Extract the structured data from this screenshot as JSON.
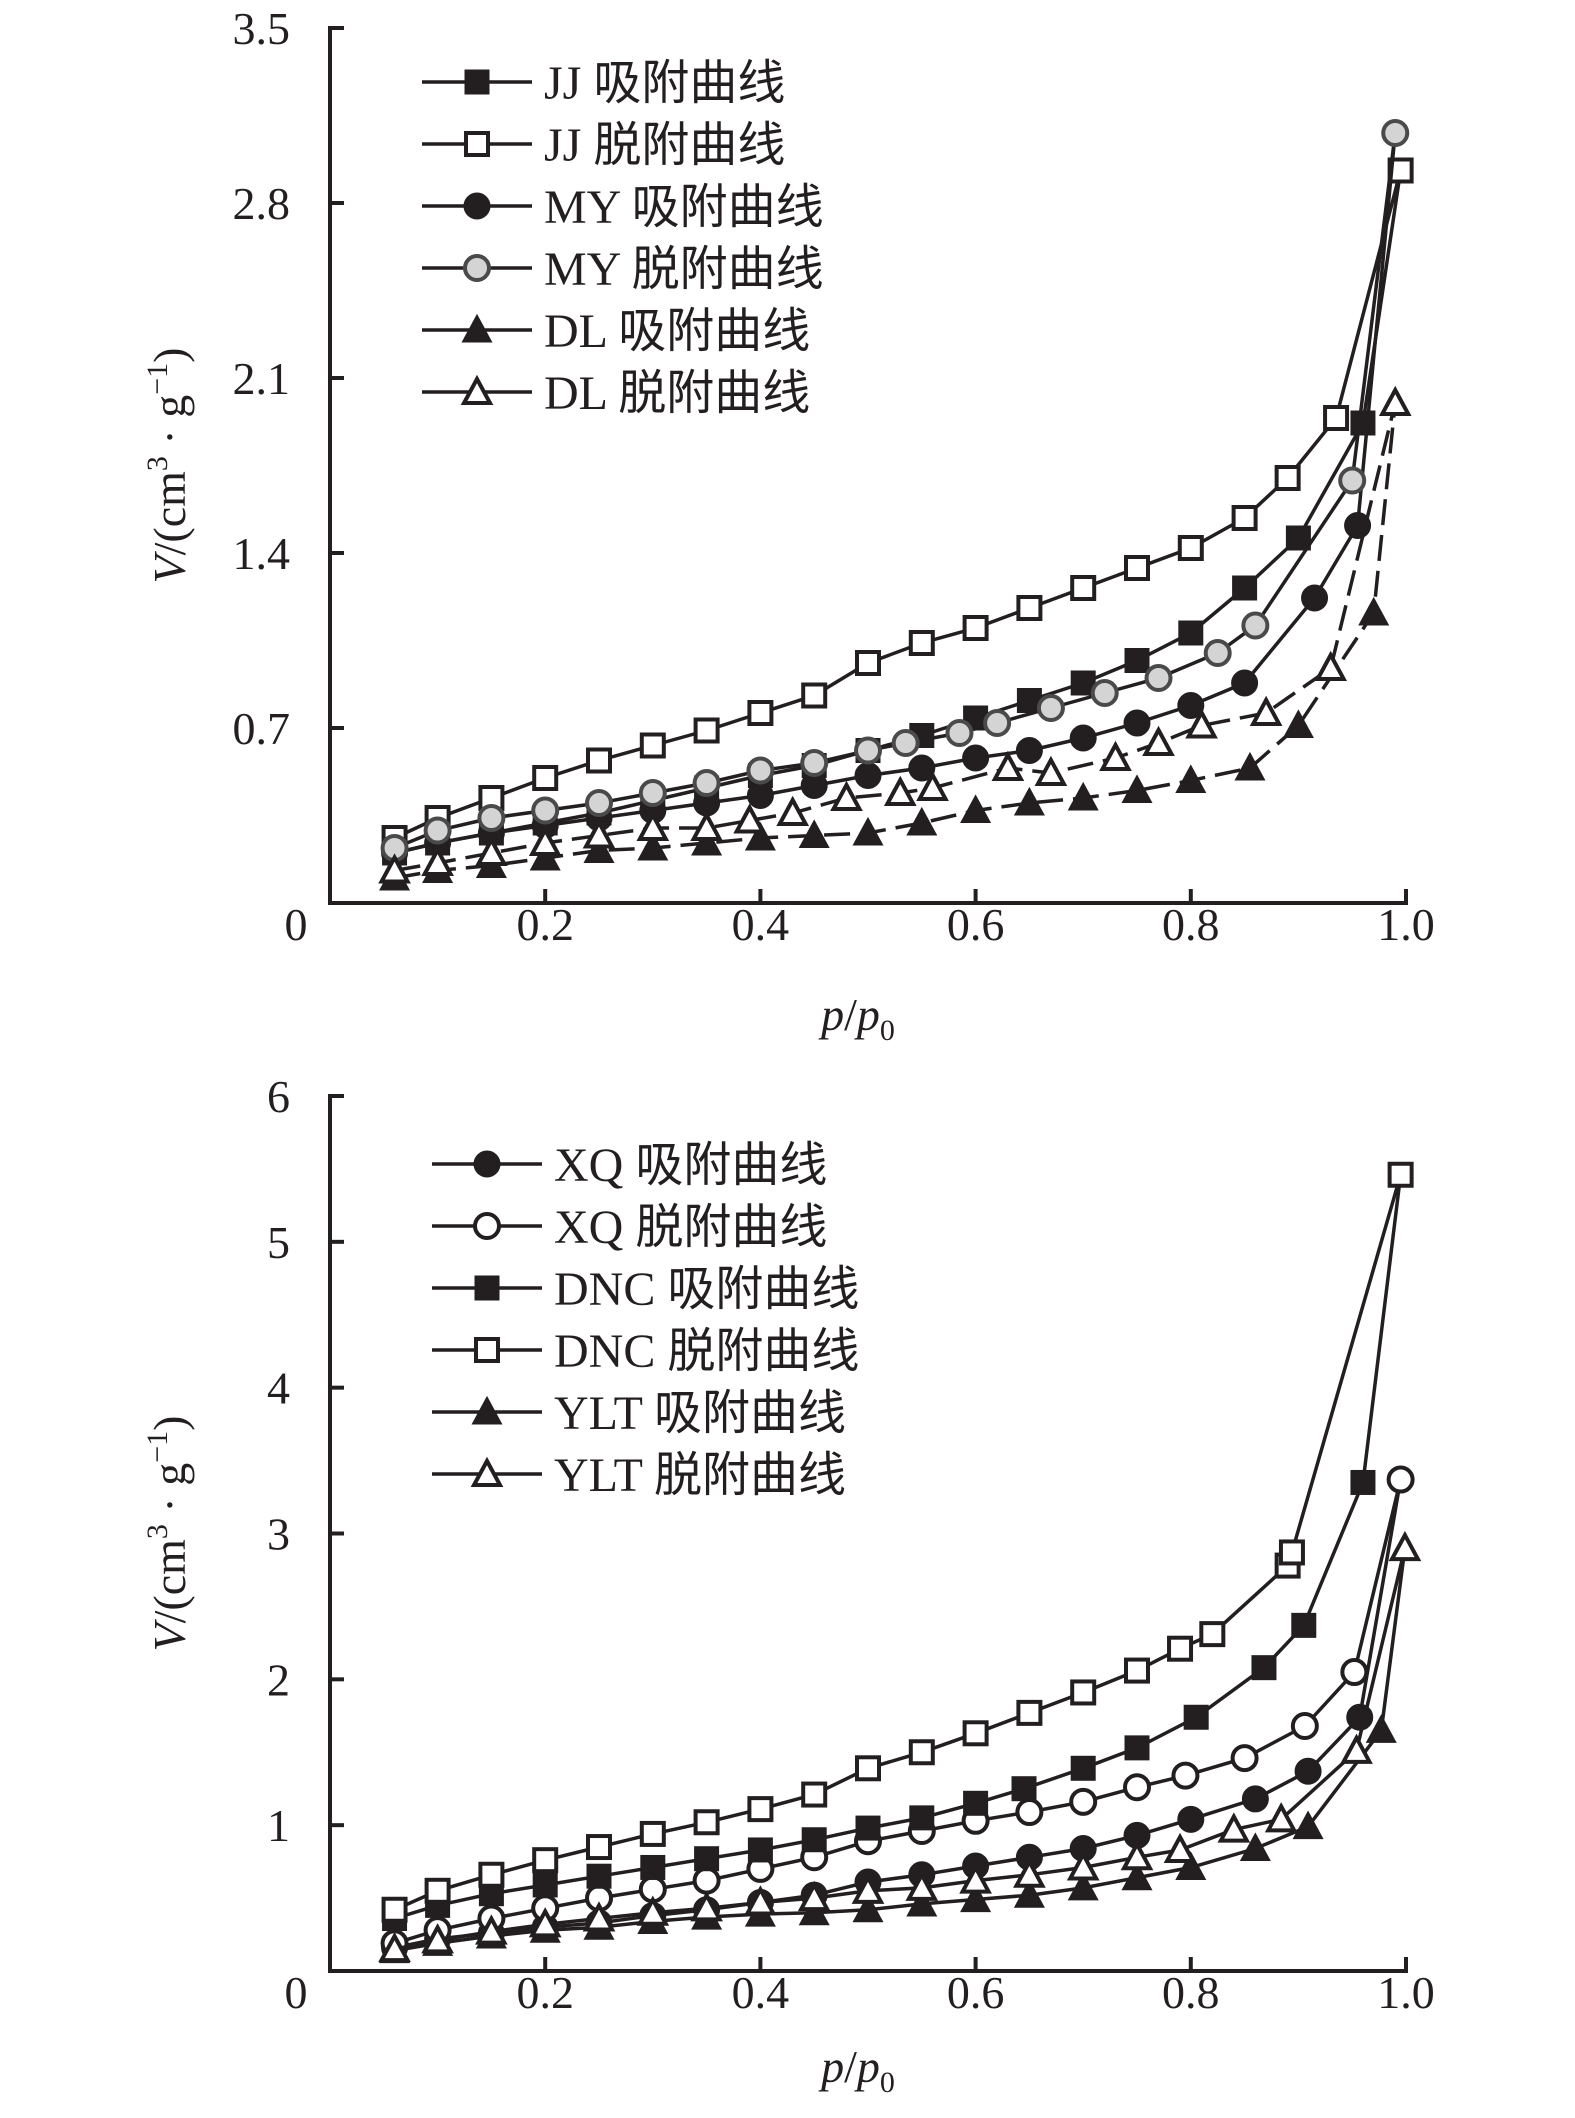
{
  "chart_data": [
    {
      "type": "line",
      "title": "",
      "xlabel": "p/p0",
      "ylabel": "V/(cm3·g-1)",
      "xlim": [
        0,
        1.0
      ],
      "ylim": [
        0,
        3.5
      ],
      "x_ticks": [
        "0",
        "0.2",
        "0.4",
        "0.6",
        "0.8",
        "1.0"
      ],
      "x_tick_values": [
        0,
        0.2,
        0.4,
        0.6,
        0.8,
        1.0
      ],
      "y_ticks": [
        "0.7",
        "1.4",
        "2.1",
        "2.8",
        "3.5"
      ],
      "y_tick_values": [
        0.7,
        1.4,
        2.1,
        2.8,
        3.5
      ],
      "grid": false,
      "legend_position": "top-left",
      "series": [
        {
          "name": "JJ 吸附曲线",
          "marker": "square-filled",
          "dashed": false,
          "x": [
            0.06,
            0.1,
            0.15,
            0.2,
            0.25,
            0.3,
            0.35,
            0.4,
            0.45,
            0.5,
            0.55,
            0.6,
            0.65,
            0.7,
            0.75,
            0.8,
            0.85,
            0.9,
            0.96,
            0.995
          ],
          "y": [
            0.2,
            0.24,
            0.28,
            0.32,
            0.36,
            0.41,
            0.46,
            0.51,
            0.55,
            0.61,
            0.67,
            0.74,
            0.81,
            0.88,
            0.97,
            1.08,
            1.26,
            1.46,
            1.92,
            2.93
          ]
        },
        {
          "name": "JJ 脱附曲线",
          "marker": "square-open",
          "dashed": false,
          "x": [
            0.06,
            0.1,
            0.15,
            0.2,
            0.25,
            0.3,
            0.35,
            0.4,
            0.45,
            0.5,
            0.55,
            0.6,
            0.65,
            0.7,
            0.75,
            0.8,
            0.85,
            0.89,
            0.935,
            0.995
          ],
          "y": [
            0.26,
            0.34,
            0.42,
            0.5,
            0.57,
            0.63,
            0.69,
            0.76,
            0.83,
            0.96,
            1.04,
            1.1,
            1.18,
            1.26,
            1.34,
            1.42,
            1.54,
            1.7,
            1.94,
            2.93
          ]
        },
        {
          "name": "MY 吸附曲线",
          "marker": "circle-filled",
          "dashed": false,
          "x": [
            0.06,
            0.1,
            0.15,
            0.2,
            0.25,
            0.3,
            0.35,
            0.4,
            0.45,
            0.5,
            0.55,
            0.6,
            0.65,
            0.7,
            0.75,
            0.8,
            0.85,
            0.915,
            0.955,
            0.99
          ],
          "y": [
            0.2,
            0.24,
            0.28,
            0.31,
            0.34,
            0.37,
            0.4,
            0.43,
            0.47,
            0.51,
            0.54,
            0.58,
            0.61,
            0.66,
            0.72,
            0.79,
            0.88,
            1.22,
            1.51,
            3.08
          ]
        },
        {
          "name": "MY 脱附曲线",
          "marker": "circle-gray",
          "dashed": false,
          "x": [
            0.06,
            0.1,
            0.15,
            0.2,
            0.25,
            0.3,
            0.35,
            0.4,
            0.45,
            0.5,
            0.535,
            0.585,
            0.62,
            0.67,
            0.72,
            0.77,
            0.825,
            0.86,
            0.95,
            0.99
          ],
          "y": [
            0.22,
            0.29,
            0.34,
            0.37,
            0.4,
            0.44,
            0.48,
            0.53,
            0.56,
            0.61,
            0.64,
            0.68,
            0.72,
            0.78,
            0.84,
            0.9,
            1.0,
            1.11,
            1.69,
            3.08
          ]
        },
        {
          "name": "DL 吸附曲线",
          "marker": "triangle-filled",
          "dashed": true,
          "x": [
            0.06,
            0.1,
            0.15,
            0.2,
            0.25,
            0.3,
            0.35,
            0.4,
            0.45,
            0.5,
            0.55,
            0.6,
            0.65,
            0.7,
            0.75,
            0.8,
            0.855,
            0.9,
            0.97,
            0.99
          ],
          "y": [
            0.1,
            0.13,
            0.15,
            0.18,
            0.21,
            0.22,
            0.24,
            0.26,
            0.27,
            0.28,
            0.32,
            0.37,
            0.4,
            0.42,
            0.45,
            0.49,
            0.54,
            0.71,
            1.16,
            2.0
          ]
        },
        {
          "name": "DL 脱附曲线",
          "marker": "triangle-open",
          "dashed": true,
          "x": [
            0.06,
            0.1,
            0.15,
            0.2,
            0.25,
            0.3,
            0.35,
            0.39,
            0.43,
            0.48,
            0.53,
            0.56,
            0.63,
            0.67,
            0.73,
            0.77,
            0.81,
            0.87,
            0.93,
            0.99
          ],
          "y": [
            0.13,
            0.16,
            0.2,
            0.24,
            0.27,
            0.3,
            0.3,
            0.33,
            0.36,
            0.42,
            0.44,
            0.46,
            0.54,
            0.52,
            0.58,
            0.64,
            0.71,
            0.76,
            0.94,
            2.0
          ]
        }
      ]
    },
    {
      "type": "line",
      "title": "",
      "xlabel": "p/p0",
      "ylabel": "V/(cm3·g-1)",
      "xlim": [
        0,
        1.0
      ],
      "ylim": [
        0,
        6
      ],
      "x_ticks": [
        "0",
        "0.2",
        "0.4",
        "0.6",
        "0.8",
        "1.0"
      ],
      "x_tick_values": [
        0,
        0.2,
        0.4,
        0.6,
        0.8,
        1.0
      ],
      "y_ticks": [
        "1",
        "2",
        "3",
        "4",
        "5",
        "6"
      ],
      "y_tick_values": [
        1,
        2,
        3,
        4,
        5,
        6
      ],
      "grid": false,
      "legend_position": "top-left",
      "series": [
        {
          "name": "XQ 吸附曲线",
          "marker": "circle-filled",
          "dashed": false,
          "x": [
            0.06,
            0.1,
            0.15,
            0.2,
            0.25,
            0.3,
            0.35,
            0.4,
            0.45,
            0.5,
            0.55,
            0.6,
            0.65,
            0.7,
            0.75,
            0.8,
            0.86,
            0.909,
            0.957,
            0.995
          ],
          "y": [
            0.16,
            0.22,
            0.26,
            0.3,
            0.33,
            0.38,
            0.42,
            0.47,
            0.52,
            0.61,
            0.66,
            0.72,
            0.78,
            0.84,
            0.93,
            1.04,
            1.18,
            1.37,
            1.74,
            3.37
          ]
        },
        {
          "name": "XQ 脱附曲线",
          "marker": "circle-open",
          "dashed": false,
          "x": [
            0.06,
            0.1,
            0.15,
            0.2,
            0.25,
            0.3,
            0.35,
            0.4,
            0.45,
            0.5,
            0.55,
            0.6,
            0.65,
            0.7,
            0.75,
            0.795,
            0.85,
            0.906,
            0.952,
            0.995
          ],
          "y": [
            0.19,
            0.28,
            0.36,
            0.43,
            0.5,
            0.56,
            0.62,
            0.7,
            0.78,
            0.89,
            0.96,
            1.03,
            1.09,
            1.16,
            1.26,
            1.34,
            1.46,
            1.68,
            2.05,
            3.37
          ]
        },
        {
          "name": "DNC 吸附曲线",
          "marker": "square-filled",
          "dashed": false,
          "x": [
            0.06,
            0.1,
            0.15,
            0.2,
            0.25,
            0.3,
            0.35,
            0.4,
            0.45,
            0.5,
            0.55,
            0.6,
            0.645,
            0.7,
            0.75,
            0.805,
            0.868,
            0.905,
            0.96,
            0.995
          ],
          "y": [
            0.36,
            0.45,
            0.53,
            0.59,
            0.65,
            0.71,
            0.77,
            0.83,
            0.9,
            0.98,
            1.05,
            1.15,
            1.25,
            1.39,
            1.53,
            1.74,
            2.08,
            2.37,
            3.35,
            5.46
          ]
        },
        {
          "name": "DNC 脱附曲线",
          "marker": "square-open",
          "dashed": false,
          "x": [
            0.06,
            0.1,
            0.15,
            0.2,
            0.25,
            0.3,
            0.35,
            0.4,
            0.45,
            0.5,
            0.55,
            0.6,
            0.65,
            0.7,
            0.75,
            0.79,
            0.82,
            0.89,
            0.894,
            0.995
          ],
          "y": [
            0.42,
            0.55,
            0.66,
            0.76,
            0.85,
            0.94,
            1.02,
            1.11,
            1.21,
            1.39,
            1.5,
            1.63,
            1.77,
            1.91,
            2.06,
            2.21,
            2.31,
            2.78,
            2.87,
            5.46
          ]
        },
        {
          "name": "YLT 吸附曲线",
          "marker": "triangle-filled",
          "dashed": false,
          "x": [
            0.06,
            0.1,
            0.15,
            0.2,
            0.25,
            0.3,
            0.35,
            0.4,
            0.45,
            0.5,
            0.55,
            0.6,
            0.65,
            0.7,
            0.75,
            0.8,
            0.86,
            0.909,
            0.977,
            0.999
          ],
          "y": [
            0.14,
            0.19,
            0.24,
            0.28,
            0.3,
            0.34,
            0.37,
            0.39,
            0.4,
            0.42,
            0.46,
            0.49,
            0.52,
            0.57,
            0.64,
            0.71,
            0.84,
            0.99,
            1.65,
            2.9
          ]
        },
        {
          "name": "YLT 脱附曲线",
          "marker": "triangle-open",
          "dashed": false,
          "x": [
            0.06,
            0.1,
            0.15,
            0.2,
            0.25,
            0.3,
            0.35,
            0.4,
            0.45,
            0.5,
            0.55,
            0.6,
            0.65,
            0.7,
            0.75,
            0.79,
            0.84,
            0.884,
            0.954,
            0.999
          ],
          "y": [
            0.15,
            0.21,
            0.27,
            0.32,
            0.36,
            0.4,
            0.43,
            0.47,
            0.5,
            0.55,
            0.57,
            0.62,
            0.66,
            0.71,
            0.78,
            0.83,
            0.97,
            1.04,
            1.51,
            2.9
          ]
        }
      ]
    }
  ]
}
